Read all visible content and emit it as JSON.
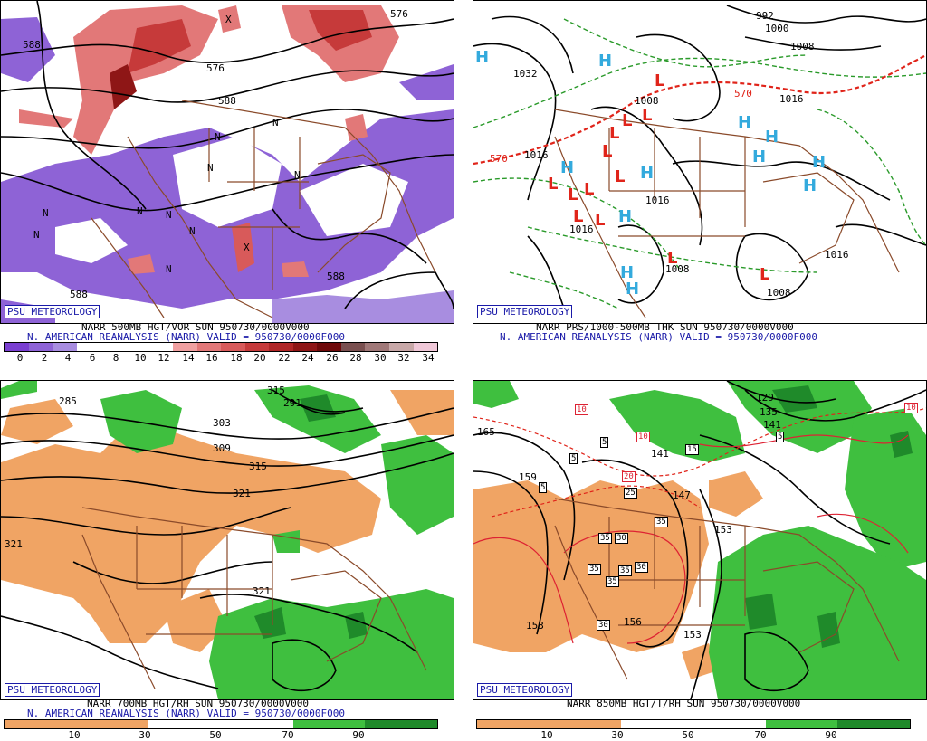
{
  "panels": [
    {
      "id": "vor500",
      "logo": "PSU METEOROLOGY",
      "caption_line1": "NARR 500MB HGT/VOR SUN 950730/0000V000",
      "caption_line2": "N. AMERICAN REANALYSIS (NARR) VALID = 950730/0000F000",
      "scale_labels": [
        "0",
        "2",
        "4",
        "6",
        "8",
        "10",
        "12",
        "14",
        "16",
        "18",
        "20",
        "22",
        "24",
        "26",
        "28",
        "30",
        "32",
        "34"
      ],
      "scale_colors": [
        "#7a3fd1",
        "#8e63d6",
        "#a88de0",
        "#ffffff",
        "#ffffff",
        "#ffffff",
        "#ffffff",
        "#f0a0a0",
        "#e27878",
        "#d85a5a",
        "#c63a3a",
        "#b02626",
        "#8e1616",
        "#6e0a0a",
        "#7a5050",
        "#a07878",
        "#c8a8a8",
        "#f0c8d8"
      ],
      "contour_labels": [
        "588",
        "576",
        "588",
        "588",
        "588",
        "576"
      ],
      "vort_labels": [
        "N",
        "N",
        "N",
        "N",
        "N",
        "N",
        "N",
        "N",
        "N",
        "N",
        "X",
        "X"
      ]
    },
    {
      "id": "prs1000",
      "logo": "PSU METEOROLOGY",
      "caption_line1": "NARR PRS/1000-500MB THK SUN 950730/0000V000",
      "caption_line2": "N. AMERICAN REANALYSIS (NARR) VALID = 950730/0000F000",
      "contour_labels": [
        "992",
        "1000",
        "1008",
        "1032",
        "1016",
        "570",
        "570",
        "1016",
        "1016",
        "1008",
        "1008",
        "1016",
        "1016",
        "1008"
      ],
      "high_label": "H",
      "low_label": "L"
    },
    {
      "id": "rh700",
      "logo": "PSU METEOROLOGY",
      "caption_line1": "NARR 700MB HGT/RH SUN 950730/0000V000",
      "caption_line2": "N. AMERICAN REANALYSIS (NARR) VALID = 950730/0000F000",
      "scale_labels": [
        "10",
        "30",
        "50",
        "70",
        "90"
      ],
      "contour_labels": [
        "315",
        "291",
        "303",
        "309",
        "315",
        "321",
        "321",
        "321",
        "285"
      ]
    },
    {
      "id": "t850",
      "logo": "PSU METEOROLOGY",
      "caption_line1": "NARR 850MB HGT/T/RH SUN 950730/0000V000",
      "caption_line2": "",
      "scale_labels": [
        "10",
        "30",
        "50",
        "70",
        "90"
      ],
      "contour_labels": [
        "165",
        "159",
        "153",
        "156",
        "153",
        "147",
        "141",
        "129",
        "135",
        "141",
        "153"
      ],
      "temp_boxes": [
        "10",
        "10",
        "10",
        "5",
        "5",
        "5",
        "15",
        "20",
        "25",
        "35",
        "35",
        "30",
        "35",
        "35",
        "30",
        "35",
        "30",
        "5"
      ]
    }
  ],
  "colors": {
    "vor_purple": "#8e63d6",
    "vor_red": "#e27878",
    "vor_darkred": "#8e1616",
    "rh_orange": "#f0a464",
    "rh_green": "#3fbf3f",
    "rh_darkgreen": "#1f8a2a",
    "border_brown": "#8a4a2a",
    "high_blue": "#33aadd",
    "low_red": "#e0241a",
    "thk_green": "#2a9a2a",
    "thk_red": "#e0241a",
    "caption_blue": "#1a1aa8"
  }
}
